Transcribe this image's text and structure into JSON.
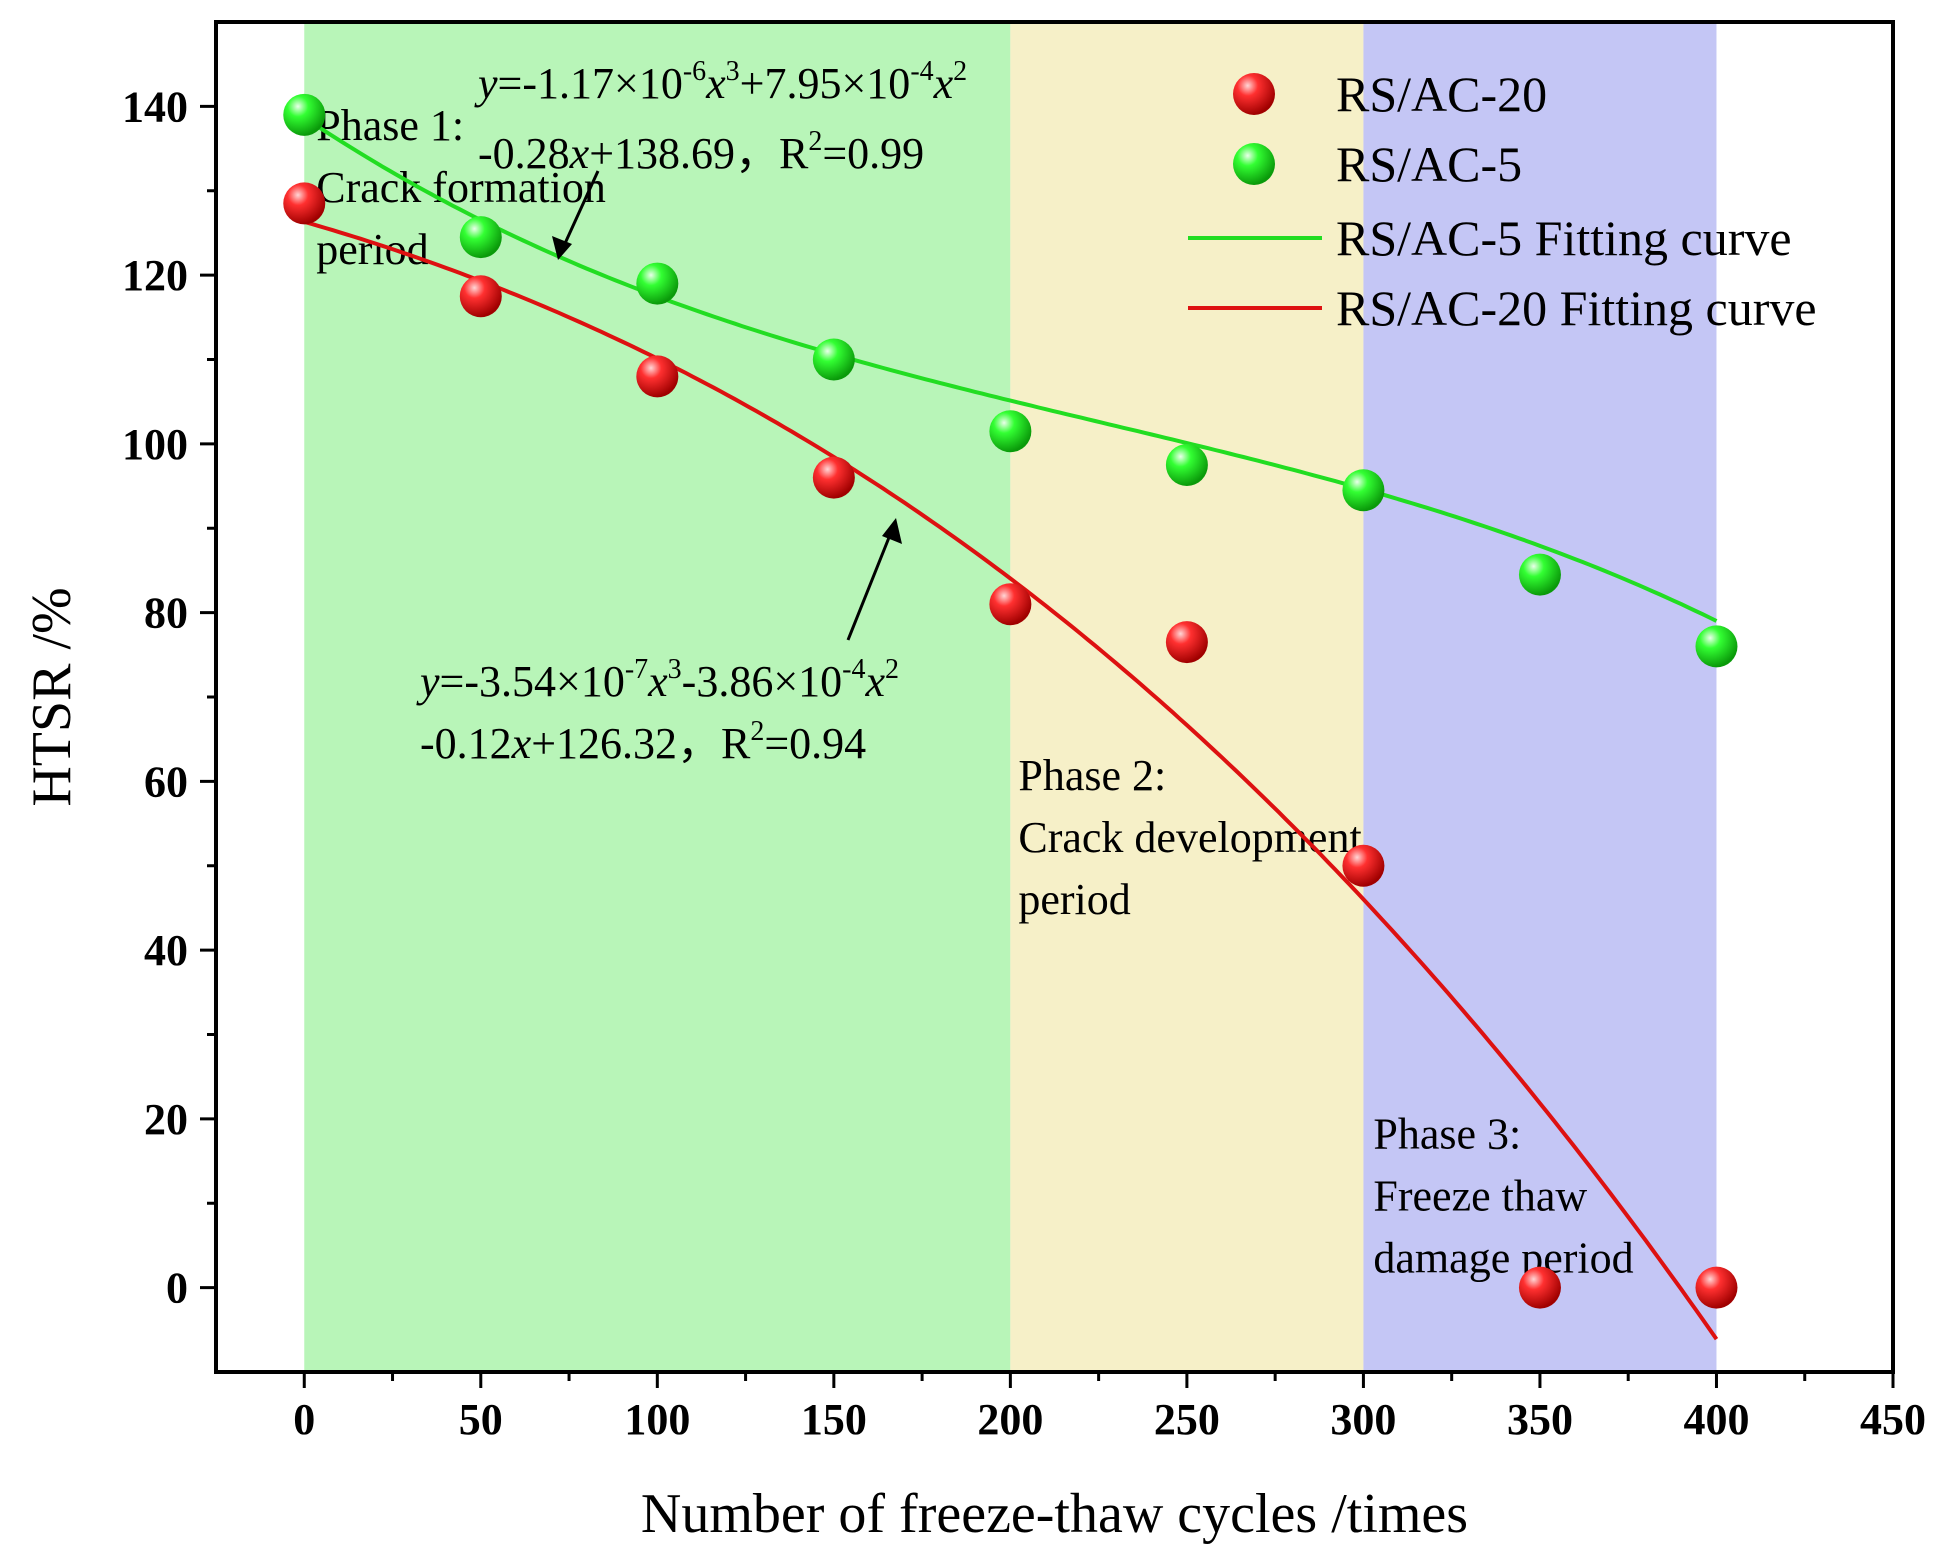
{
  "chart_data": {
    "type": "scatter",
    "xlabel": "Number of freeze-thaw cycles /times",
    "ylabel": "HTSR /%",
    "xlim": [
      -25,
      450
    ],
    "ylim": [
      -10,
      150
    ],
    "x_ticks": [
      0,
      50,
      100,
      150,
      200,
      250,
      300,
      350,
      400,
      450
    ],
    "y_ticks": [
      0,
      20,
      40,
      60,
      80,
      100,
      120,
      140
    ],
    "phases": [
      {
        "x0": 0,
        "x1": 200,
        "color": "#b8f5b8",
        "label": [
          "Phase 1:",
          "Crack formation",
          "period"
        ]
      },
      {
        "x0": 200,
        "x1": 300,
        "color": "#f6f0c8",
        "label": [
          "Phase 2:",
          "Crack development",
          "period"
        ]
      },
      {
        "x0": 300,
        "x1": 400,
        "color": "#c4c6f5",
        "label": [
          "Phase 3:",
          "Freeze thaw",
          "damage period"
        ]
      }
    ],
    "series": [
      {
        "name": "RS/AC-20",
        "kind": "points",
        "color": "#ee1111",
        "x": [
          0,
          50,
          100,
          150,
          200,
          250,
          300,
          350,
          400
        ],
        "y": [
          128.5,
          117.5,
          108,
          96,
          81,
          76.5,
          50,
          0,
          0
        ]
      },
      {
        "name": "RS/AC-5",
        "kind": "points",
        "color": "#22ee22",
        "x": [
          0,
          50,
          100,
          150,
          200,
          250,
          300,
          350,
          400
        ],
        "y": [
          139,
          124.5,
          119,
          110,
          101.5,
          97.5,
          94.5,
          84.5,
          76
        ]
      },
      {
        "name": "RS/AC-5 Fitting curve",
        "kind": "curve",
        "color": "#22dd22",
        "coeffs": [
          -1.17e-06,
          0.000795,
          -0.28,
          138.69
        ],
        "x_range": [
          0,
          400
        ]
      },
      {
        "name": "RS/AC-20 Fitting curve",
        "kind": "curve",
        "color": "#dd1111",
        "coeffs": [
          -3.54e-07,
          -0.000386,
          -0.12,
          126.32
        ],
        "x_range": [
          0,
          400
        ]
      }
    ],
    "equations": {
      "ac5": {
        "line1": {
          "y": "y",
          "a": "=-1.17×10",
          "e1": "-6",
          "x1": "x",
          "p1": "3",
          "b": "+7.95×10",
          "e2": "-4",
          "x2": "x",
          "p2": "2"
        },
        "line2": {
          "a": "-0.28",
          "x": "x",
          "b": "+138.69，R",
          "p": "2",
          "c": "=0.99"
        }
      },
      "ac20": {
        "line1": {
          "y": "y",
          "a": "=-3.54×10",
          "e1": "-7",
          "x1": "x",
          "p1": "3",
          "b": "-3.86×10",
          "e2": "-4",
          "x2": "x",
          "p2": "2"
        },
        "line2": {
          "a": "-0.12",
          "x": "x",
          "b": "+126.32，R",
          "p": "2",
          "c": "=0.94"
        }
      }
    }
  }
}
